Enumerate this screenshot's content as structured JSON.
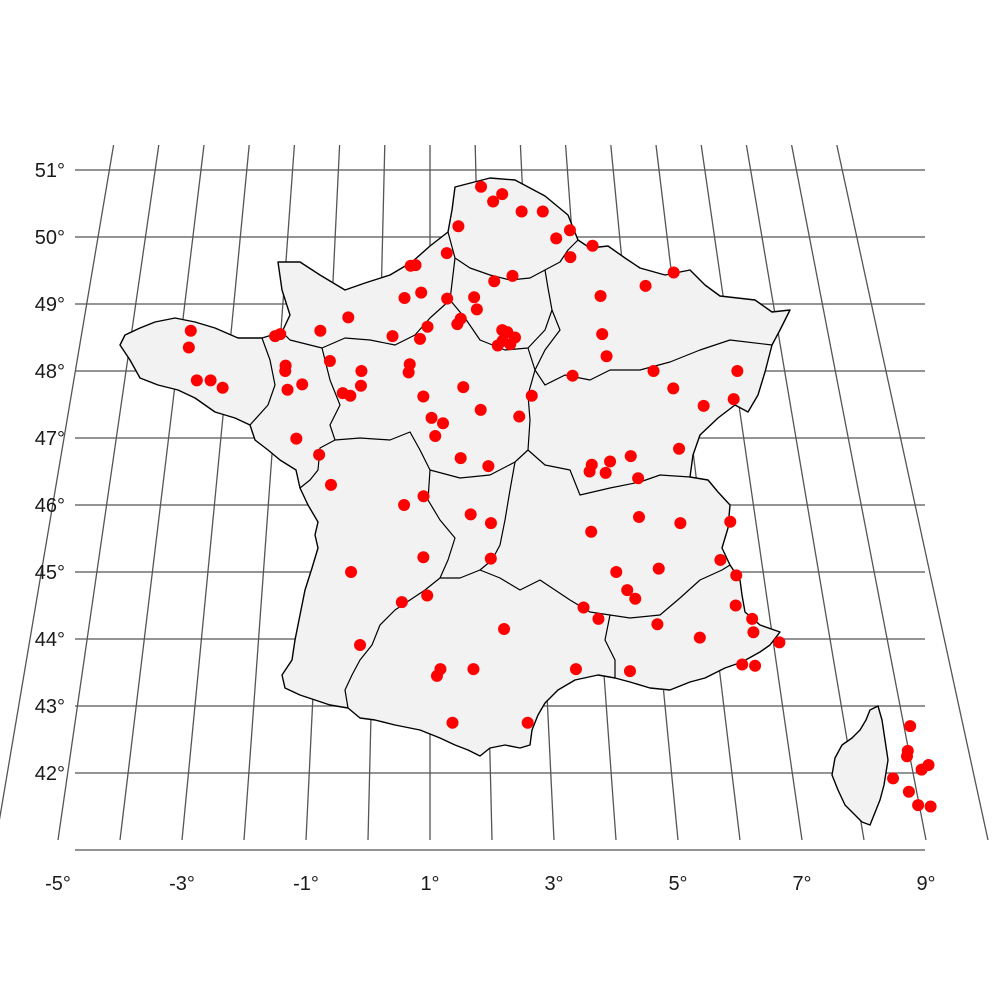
{
  "map": {
    "point_color": "#ff0000",
    "land_color": "#f2f2f2",
    "border_color": "#000000",
    "grid_color": "#555555"
  },
  "axes": {
    "lon_ticks": [
      -5,
      -3,
      -1,
      1,
      3,
      5,
      7,
      9
    ],
    "lon_tick_labels": [
      "-5°",
      "-3°",
      "-1°",
      "1°",
      "3°",
      "5°",
      "7°",
      "9°"
    ],
    "lat_ticks": [
      42,
      43,
      44,
      45,
      46,
      47,
      48,
      49,
      50,
      51
    ],
    "lat_tick_labels": [
      "42°",
      "43°",
      "44°",
      "45°",
      "46°",
      "47°",
      "48°",
      "49°",
      "50°",
      "51°"
    ]
  },
  "points": [
    [
      2.1,
      50.75
    ],
    [
      2.55,
      50.64
    ],
    [
      2.35,
      50.53
    ],
    [
      3.4,
      50.38
    ],
    [
      2.95,
      50.38
    ],
    [
      1.6,
      50.16
    ],
    [
      3.65,
      49.98
    ],
    [
      3.95,
      50.1
    ],
    [
      4.4,
      49.87
    ],
    [
      3.92,
      49.7
    ],
    [
      6.03,
      49.47
    ],
    [
      5.42,
      49.27
    ],
    [
      4.48,
      49.12
    ],
    [
      2.7,
      49.42
    ],
    [
      2.32,
      49.34
    ],
    [
      1.35,
      49.76
    ],
    [
      0.6,
      49.57
    ],
    [
      0.7,
      49.58
    ],
    [
      0.48,
      49.09
    ],
    [
      0.82,
      49.17
    ],
    [
      1.35,
      49.08
    ],
    [
      1.9,
      49.1
    ],
    [
      1.95,
      48.92
    ],
    [
      1.55,
      48.7
    ],
    [
      1.62,
      48.78
    ],
    [
      0.95,
      48.66
    ],
    [
      0.8,
      48.48
    ],
    [
      0.25,
      48.52
    ],
    [
      -0.65,
      48.8
    ],
    [
      -1.2,
      48.6
    ],
    [
      -2.1,
      48.52
    ],
    [
      -2.0,
      48.55
    ],
    [
      -3.8,
      48.6
    ],
    [
      -3.8,
      48.35
    ],
    [
      -1.85,
      48.08
    ],
    [
      -1.85,
      48.0
    ],
    [
      -1.78,
      47.72
    ],
    [
      -1.5,
      47.8
    ],
    [
      -0.35,
      48.0
    ],
    [
      -0.35,
      47.78
    ],
    [
      -0.7,
      47.67
    ],
    [
      -0.55,
      47.63
    ],
    [
      0.6,
      48.1
    ],
    [
      0.58,
      47.98
    ],
    [
      0.87,
      47.62
    ],
    [
      1.65,
      47.76
    ],
    [
      2.45,
      48.61
    ],
    [
      2.55,
      48.58
    ],
    [
      2.7,
      48.5
    ],
    [
      2.35,
      48.38
    ],
    [
      2.45,
      48.45
    ],
    [
      2.6,
      48.4
    ],
    [
      1.03,
      47.3
    ],
    [
      1.25,
      47.22
    ],
    [
      1.1,
      47.03
    ],
    [
      1.98,
      47.42
    ],
    [
      2.72,
      47.32
    ],
    [
      2.98,
      47.63
    ],
    [
      3.8,
      47.93
    ],
    [
      4.45,
      48.55
    ],
    [
      4.5,
      48.22
    ],
    [
      5.4,
      48.0
    ],
    [
      5.75,
      47.74
    ],
    [
      6.3,
      47.48
    ],
    [
      7.05,
      48.0
    ],
    [
      6.9,
      47.58
    ],
    [
      -3.57,
      47.86
    ],
    [
      -3.3,
      47.86
    ],
    [
      -3.05,
      47.75
    ],
    [
      -1.55,
      46.99
    ],
    [
      -1.1,
      46.75
    ],
    [
      -0.85,
      46.3
    ],
    [
      -0.98,
      48.15
    ],
    [
      1.58,
      46.7
    ],
    [
      2.1,
      46.58
    ],
    [
      4.0,
      46.5
    ],
    [
      4.05,
      46.6
    ],
    [
      4.4,
      46.65
    ],
    [
      4.3,
      46.48
    ],
    [
      4.8,
      46.73
    ],
    [
      4.9,
      46.4
    ],
    [
      5.73,
      46.84
    ],
    [
      0.52,
      46.0
    ],
    [
      0.88,
      46.13
    ],
    [
      1.75,
      45.86
    ],
    [
      2.12,
      45.73
    ],
    [
      3.95,
      45.6
    ],
    [
      4.85,
      45.82
    ],
    [
      5.6,
      45.73
    ],
    [
      6.52,
      45.75
    ],
    [
      0.88,
      45.22
    ],
    [
      2.1,
      45.2
    ],
    [
      4.35,
      45.0
    ],
    [
      5.12,
      45.05
    ],
    [
      6.25,
      45.18
    ],
    [
      6.5,
      44.95
    ],
    [
      -0.42,
      45.0
    ],
    [
      0.5,
      44.55
    ],
    [
      0.95,
      44.65
    ],
    [
      3.72,
      44.47
    ],
    [
      3.97,
      44.3
    ],
    [
      4.52,
      44.73
    ],
    [
      4.65,
      44.6
    ],
    [
      5.0,
      44.22
    ],
    [
      5.72,
      44.02
    ],
    [
      6.42,
      44.5
    ],
    [
      6.68,
      44.3
    ],
    [
      6.67,
      44.1
    ],
    [
      7.1,
      43.95
    ],
    [
      6.4,
      43.62
    ],
    [
      6.62,
      43.6
    ],
    [
      -0.22,
      43.91
    ],
    [
      2.3,
      44.15
    ],
    [
      1.18,
      43.55
    ],
    [
      1.12,
      43.45
    ],
    [
      1.75,
      43.55
    ],
    [
      3.52,
      43.55
    ],
    [
      4.45,
      43.52
    ],
    [
      1.38,
      42.75
    ],
    [
      2.65,
      42.75
    ],
    [
      9.1,
      42.7
    ],
    [
      8.98,
      42.33
    ],
    [
      8.95,
      42.25
    ],
    [
      9.15,
      42.05
    ],
    [
      9.28,
      42.12
    ],
    [
      8.65,
      41.92
    ],
    [
      8.87,
      41.72
    ],
    [
      8.98,
      41.52
    ],
    [
      9.18,
      41.5
    ]
  ]
}
